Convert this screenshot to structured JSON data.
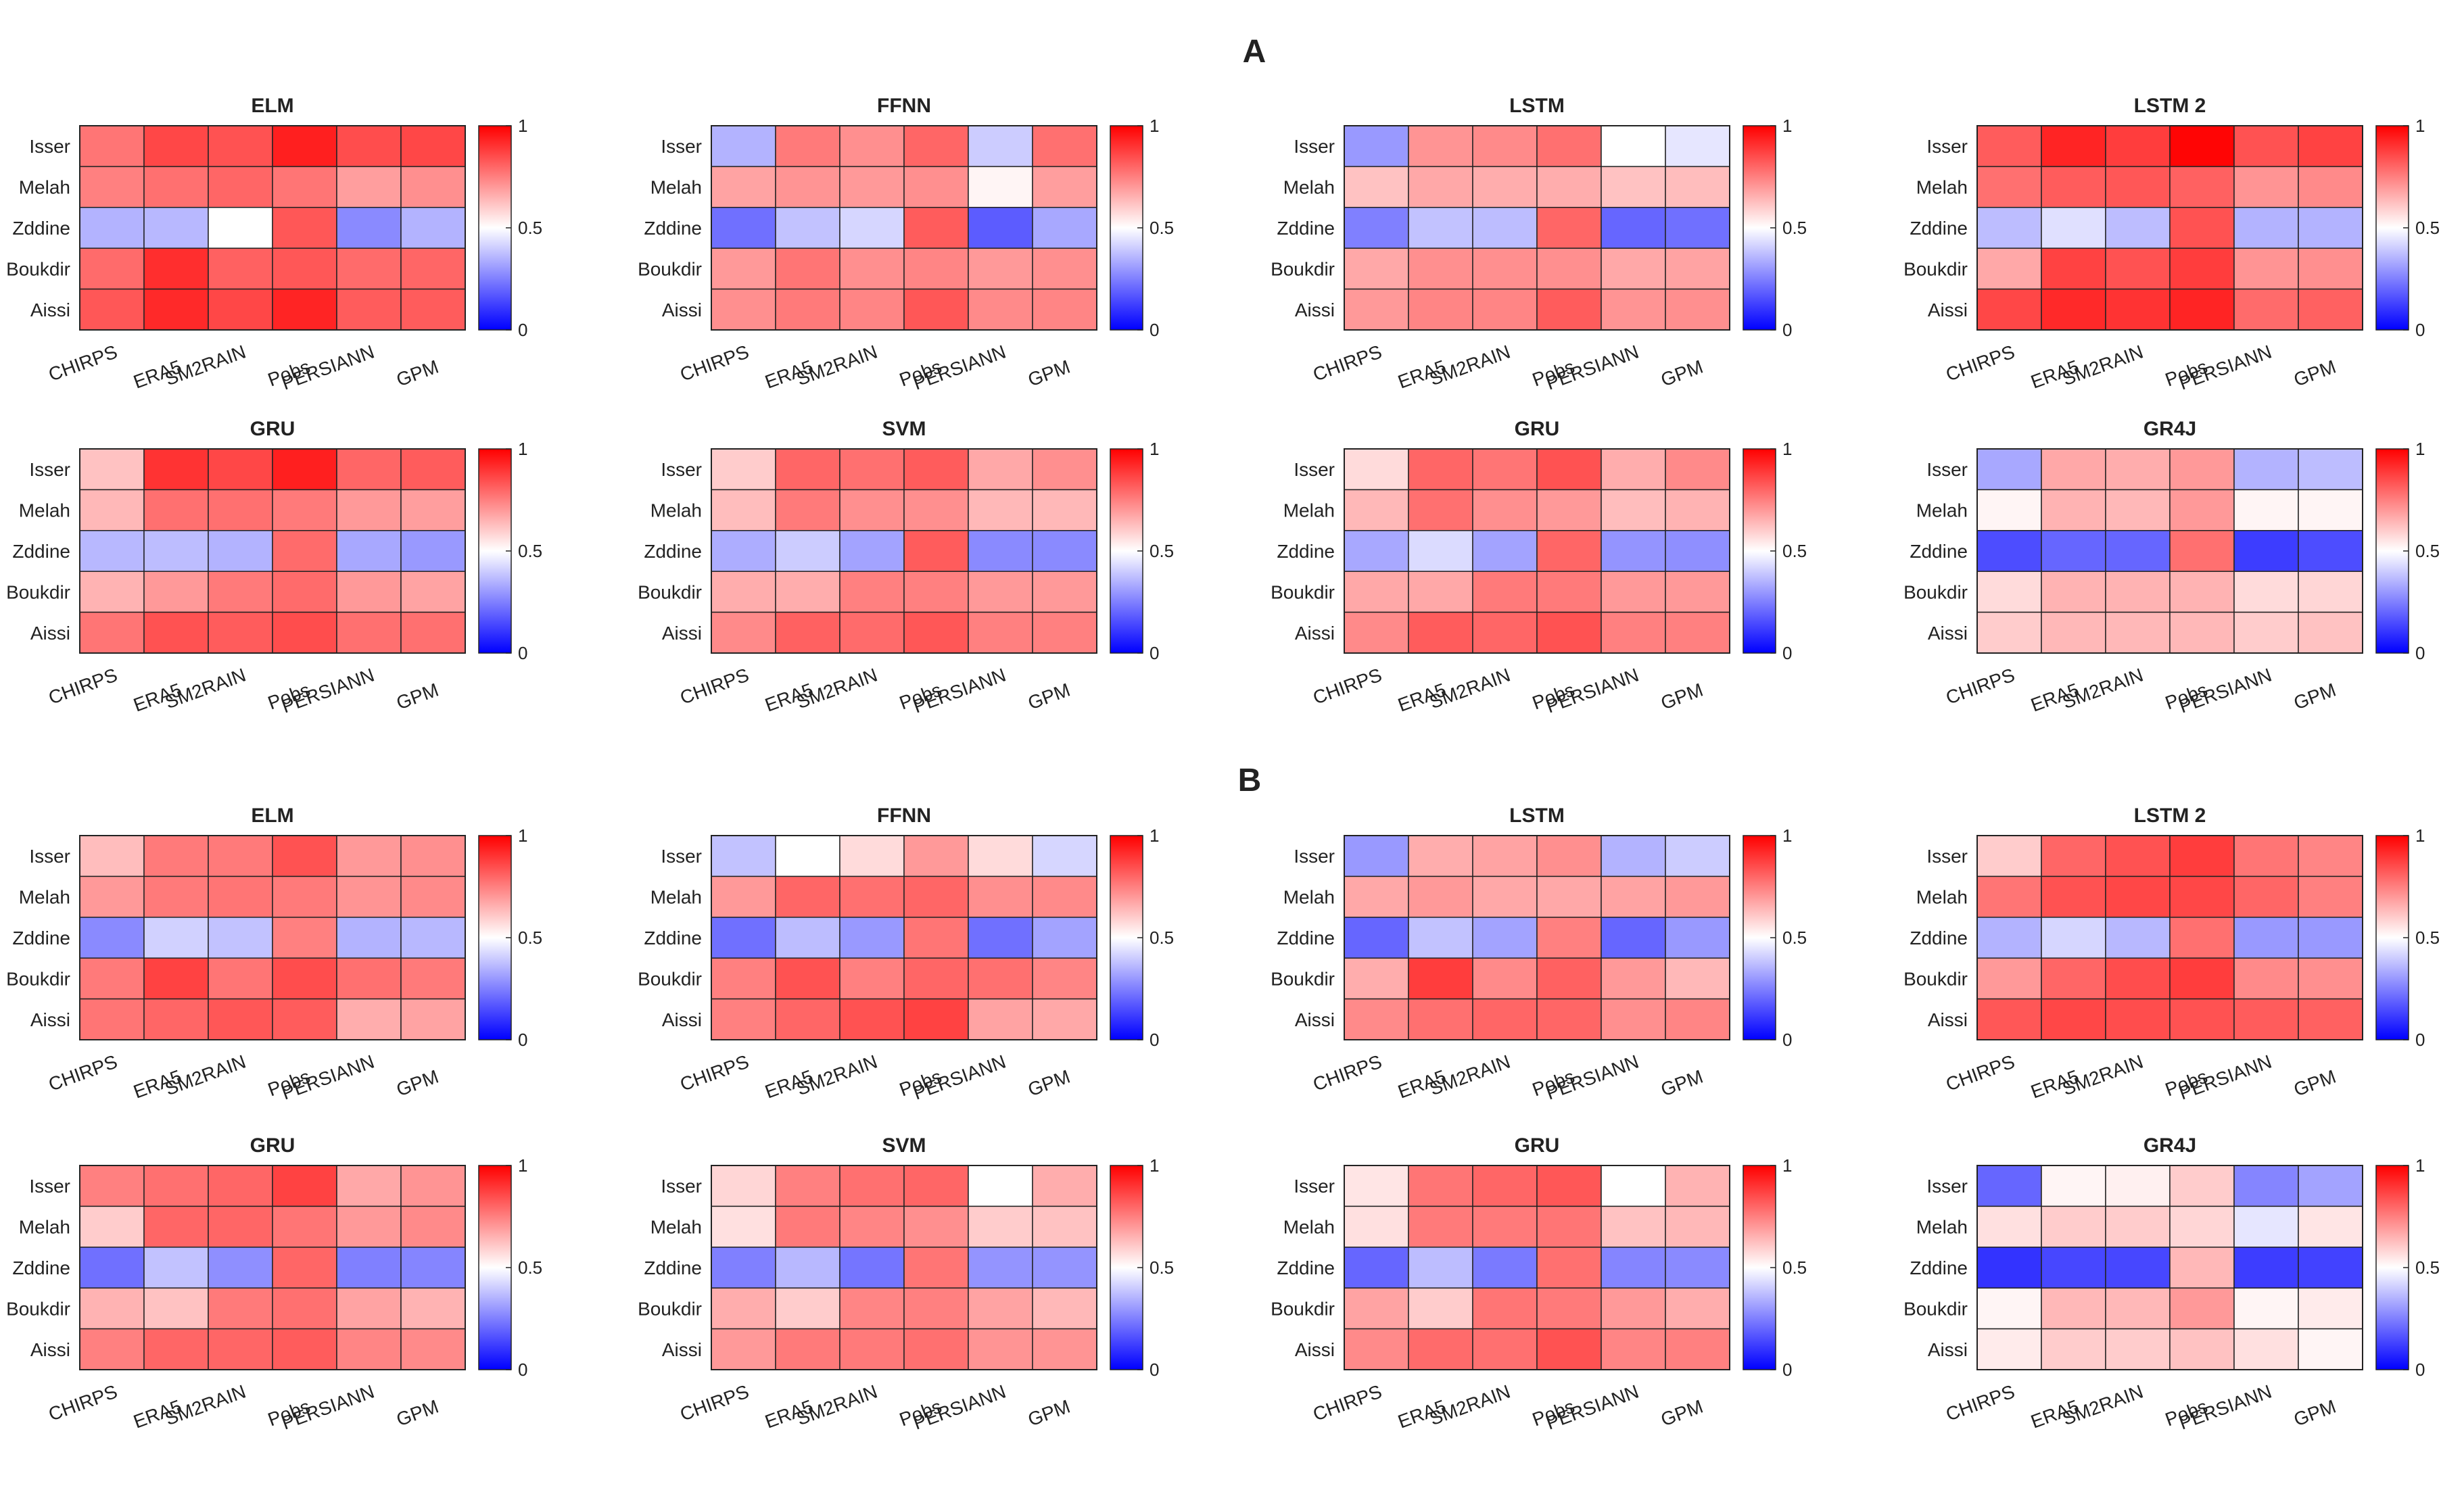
{
  "panels": [
    {
      "label": "A"
    },
    {
      "label": "B"
    }
  ],
  "colorbar": {
    "ticks": [
      "1",
      "0.5",
      "0"
    ],
    "colors": {
      "low": "#0000ff",
      "mid": "#ffffff",
      "high": "#ff0000"
    }
  },
  "chart_data": [
    {
      "type": "heatmap",
      "panel": "A",
      "title": "ELM",
      "rows": [
        "Isser",
        "Melah",
        "Zddine",
        "Boukdir",
        "Aissi"
      ],
      "columns": [
        "CHIRPS",
        "ERA5",
        "SM2RAIN",
        "Pobs",
        "PERSIANN",
        "GPM"
      ],
      "values": [
        [
          0.77,
          0.86,
          0.84,
          0.94,
          0.85,
          0.86
        ],
        [
          0.75,
          0.78,
          0.8,
          0.77,
          0.69,
          0.72
        ],
        [
          0.35,
          0.36,
          0.5,
          0.83,
          0.27,
          0.35
        ],
        [
          0.79,
          0.91,
          0.81,
          0.83,
          0.79,
          0.8
        ],
        [
          0.83,
          0.92,
          0.86,
          0.93,
          0.82,
          0.82
        ]
      ],
      "zlim": [
        0,
        1
      ]
    },
    {
      "type": "heatmap",
      "panel": "A",
      "title": "FFNN",
      "rows": [
        "Isser",
        "Melah",
        "Zddine",
        "Boukdir",
        "Aissi"
      ],
      "columns": [
        "CHIRPS",
        "ERA5",
        "SM2RAIN",
        "Pobs",
        "PERSIANN",
        "GPM"
      ],
      "values": [
        [
          0.35,
          0.76,
          0.72,
          0.8,
          0.4,
          0.78
        ],
        [
          0.68,
          0.71,
          0.7,
          0.72,
          0.52,
          0.69
        ],
        [
          0.22,
          0.38,
          0.42,
          0.82,
          0.18,
          0.33
        ],
        [
          0.7,
          0.77,
          0.72,
          0.74,
          0.7,
          0.72
        ],
        [
          0.72,
          0.76,
          0.74,
          0.83,
          0.73,
          0.74
        ]
      ],
      "zlim": [
        0,
        1
      ]
    },
    {
      "type": "heatmap",
      "panel": "A",
      "title": "LSTM",
      "rows": [
        "Isser",
        "Melah",
        "Zddine",
        "Boukdir",
        "Aissi"
      ],
      "columns": [
        "CHIRPS",
        "ERA5",
        "SM2RAIN",
        "Pobs",
        "PERSIANN",
        "GPM"
      ],
      "values": [
        [
          0.3,
          0.71,
          0.73,
          0.78,
          0.5,
          0.45
        ],
        [
          0.62,
          0.67,
          0.66,
          0.66,
          0.62,
          0.63
        ],
        [
          0.25,
          0.38,
          0.37,
          0.8,
          0.2,
          0.22
        ],
        [
          0.67,
          0.72,
          0.72,
          0.72,
          0.67,
          0.68
        ],
        [
          0.7,
          0.74,
          0.74,
          0.82,
          0.71,
          0.72
        ]
      ],
      "zlim": [
        0,
        1
      ]
    },
    {
      "type": "heatmap",
      "panel": "A",
      "title": "LSTM 2",
      "rows": [
        "Isser",
        "Melah",
        "Zddine",
        "Boukdir",
        "Aissi"
      ],
      "columns": [
        "CHIRPS",
        "ERA5",
        "SM2RAIN",
        "Pobs",
        "PERSIANN",
        "GPM"
      ],
      "values": [
        [
          0.82,
          0.93,
          0.88,
          0.99,
          0.84,
          0.87
        ],
        [
          0.78,
          0.82,
          0.83,
          0.81,
          0.71,
          0.73
        ],
        [
          0.37,
          0.44,
          0.37,
          0.84,
          0.35,
          0.35
        ],
        [
          0.67,
          0.87,
          0.84,
          0.88,
          0.71,
          0.72
        ],
        [
          0.86,
          0.92,
          0.9,
          0.93,
          0.79,
          0.81
        ]
      ],
      "zlim": [
        0,
        1
      ]
    },
    {
      "type": "heatmap",
      "panel": "A",
      "title": "GRU",
      "rows": [
        "Isser",
        "Melah",
        "Zddine",
        "Boukdir",
        "Aissi"
      ],
      "columns": [
        "CHIRPS",
        "ERA5",
        "SM2RAIN",
        "Pobs",
        "PERSIANN",
        "GPM"
      ],
      "values": [
        [
          0.62,
          0.9,
          0.86,
          0.94,
          0.8,
          0.82
        ],
        [
          0.64,
          0.78,
          0.78,
          0.76,
          0.7,
          0.69
        ],
        [
          0.36,
          0.37,
          0.35,
          0.79,
          0.33,
          0.3
        ],
        [
          0.65,
          0.7,
          0.76,
          0.79,
          0.7,
          0.68
        ],
        [
          0.77,
          0.84,
          0.82,
          0.85,
          0.78,
          0.78
        ]
      ],
      "zlim": [
        0,
        1
      ]
    },
    {
      "type": "heatmap",
      "panel": "A",
      "title": "SVM",
      "rows": [
        "Isser",
        "Melah",
        "Zddine",
        "Boukdir",
        "Aissi"
      ],
      "columns": [
        "CHIRPS",
        "ERA5",
        "SM2RAIN",
        "Pobs",
        "PERSIANN",
        "GPM"
      ],
      "values": [
        [
          0.6,
          0.8,
          0.78,
          0.82,
          0.67,
          0.72
        ],
        [
          0.63,
          0.76,
          0.72,
          0.72,
          0.64,
          0.64
        ],
        [
          0.34,
          0.4,
          0.32,
          0.82,
          0.27,
          0.27
        ],
        [
          0.66,
          0.66,
          0.75,
          0.75,
          0.7,
          0.7
        ],
        [
          0.73,
          0.81,
          0.79,
          0.83,
          0.75,
          0.75
        ]
      ],
      "zlim": [
        0,
        1
      ]
    },
    {
      "type": "heatmap",
      "panel": "A",
      "title": "GRU",
      "rows": [
        "Isser",
        "Melah",
        "Zddine",
        "Boukdir",
        "Aissi"
      ],
      "columns": [
        "CHIRPS",
        "ERA5",
        "SM2RAIN",
        "Pobs",
        "PERSIANN",
        "GPM"
      ],
      "values": [
        [
          0.57,
          0.8,
          0.77,
          0.84,
          0.66,
          0.73
        ],
        [
          0.64,
          0.78,
          0.72,
          0.7,
          0.63,
          0.65
        ],
        [
          0.33,
          0.43,
          0.32,
          0.8,
          0.29,
          0.28
        ],
        [
          0.67,
          0.67,
          0.76,
          0.76,
          0.7,
          0.7
        ],
        [
          0.73,
          0.82,
          0.8,
          0.84,
          0.75,
          0.75
        ]
      ],
      "zlim": [
        0,
        1
      ]
    },
    {
      "type": "heatmap",
      "panel": "A",
      "title": "GR4J",
      "rows": [
        "Isser",
        "Melah",
        "Zddine",
        "Boukdir",
        "Aissi"
      ],
      "columns": [
        "CHIRPS",
        "ERA5",
        "SM2RAIN",
        "Pobs",
        "PERSIANN",
        "GPM"
      ],
      "values": [
        [
          0.33,
          0.67,
          0.66,
          0.7,
          0.35,
          0.37
        ],
        [
          0.52,
          0.65,
          0.64,
          0.7,
          0.52,
          0.52
        ],
        [
          0.15,
          0.2,
          0.2,
          0.78,
          0.12,
          0.15
        ],
        [
          0.57,
          0.65,
          0.65,
          0.65,
          0.57,
          0.58
        ],
        [
          0.6,
          0.64,
          0.64,
          0.64,
          0.6,
          0.62
        ]
      ],
      "zlim": [
        0,
        1
      ]
    },
    {
      "type": "heatmap",
      "panel": "B",
      "title": "ELM",
      "rows": [
        "Isser",
        "Melah",
        "Zddine",
        "Boukdir",
        "Aissi"
      ],
      "columns": [
        "CHIRPS",
        "ERA5",
        "SM2RAIN",
        "Pobs",
        "PERSIANN",
        "GPM"
      ],
      "values": [
        [
          0.63,
          0.76,
          0.76,
          0.84,
          0.7,
          0.72
        ],
        [
          0.7,
          0.76,
          0.77,
          0.76,
          0.71,
          0.73
        ],
        [
          0.27,
          0.41,
          0.38,
          0.75,
          0.35,
          0.36
        ],
        [
          0.76,
          0.87,
          0.77,
          0.85,
          0.78,
          0.76
        ],
        [
          0.77,
          0.8,
          0.83,
          0.82,
          0.66,
          0.68
        ]
      ],
      "zlim": [
        0,
        1
      ]
    },
    {
      "type": "heatmap",
      "panel": "B",
      "title": "FFNN",
      "rows": [
        "Isser",
        "Melah",
        "Zddine",
        "Boukdir",
        "Aissi"
      ],
      "columns": [
        "CHIRPS",
        "ERA5",
        "SM2RAIN",
        "Pobs",
        "PERSIANN",
        "GPM"
      ],
      "values": [
        [
          0.38,
          0.5,
          0.57,
          0.7,
          0.57,
          0.42
        ],
        [
          0.7,
          0.8,
          0.78,
          0.8,
          0.72,
          0.73
        ],
        [
          0.22,
          0.37,
          0.3,
          0.77,
          0.22,
          0.32
        ],
        [
          0.75,
          0.84,
          0.75,
          0.8,
          0.78,
          0.74
        ],
        [
          0.75,
          0.8,
          0.84,
          0.87,
          0.68,
          0.67
        ]
      ],
      "zlim": [
        0,
        1
      ]
    },
    {
      "type": "heatmap",
      "panel": "B",
      "title": "LSTM",
      "rows": [
        "Isser",
        "Melah",
        "Zddine",
        "Boukdir",
        "Aissi"
      ],
      "columns": [
        "CHIRPS",
        "ERA5",
        "SM2RAIN",
        "Pobs",
        "PERSIANN",
        "GPM"
      ],
      "values": [
        [
          0.3,
          0.66,
          0.68,
          0.72,
          0.35,
          0.4
        ],
        [
          0.67,
          0.7,
          0.67,
          0.67,
          0.68,
          0.7
        ],
        [
          0.2,
          0.38,
          0.32,
          0.75,
          0.2,
          0.3
        ],
        [
          0.66,
          0.88,
          0.73,
          0.81,
          0.7,
          0.64
        ],
        [
          0.73,
          0.78,
          0.8,
          0.8,
          0.72,
          0.74
        ]
      ],
      "zlim": [
        0,
        1
      ]
    },
    {
      "type": "heatmap",
      "panel": "B",
      "title": "LSTM 2",
      "rows": [
        "Isser",
        "Melah",
        "Zddine",
        "Boukdir",
        "Aissi"
      ],
      "columns": [
        "CHIRPS",
        "ERA5",
        "SM2RAIN",
        "Pobs",
        "PERSIANN",
        "GPM"
      ],
      "values": [
        [
          0.6,
          0.8,
          0.84,
          0.88,
          0.77,
          0.74
        ],
        [
          0.77,
          0.84,
          0.86,
          0.86,
          0.8,
          0.75
        ],
        [
          0.35,
          0.42,
          0.36,
          0.78,
          0.3,
          0.3
        ],
        [
          0.7,
          0.8,
          0.85,
          0.88,
          0.73,
          0.72
        ],
        [
          0.83,
          0.86,
          0.85,
          0.84,
          0.82,
          0.81
        ]
      ],
      "zlim": [
        0,
        1
      ]
    },
    {
      "type": "heatmap",
      "panel": "B",
      "title": "GRU",
      "rows": [
        "Isser",
        "Melah",
        "Zddine",
        "Boukdir",
        "Aissi"
      ],
      "columns": [
        "CHIRPS",
        "ERA5",
        "SM2RAIN",
        "Pobs",
        "PERSIANN",
        "GPM"
      ],
      "values": [
        [
          0.75,
          0.78,
          0.8,
          0.87,
          0.67,
          0.71
        ],
        [
          0.6,
          0.8,
          0.8,
          0.77,
          0.7,
          0.73
        ],
        [
          0.22,
          0.38,
          0.28,
          0.8,
          0.25,
          0.26
        ],
        [
          0.65,
          0.62,
          0.76,
          0.78,
          0.68,
          0.65
        ],
        [
          0.75,
          0.8,
          0.8,
          0.82,
          0.74,
          0.73
        ]
      ],
      "zlim": [
        0,
        1
      ]
    },
    {
      "type": "heatmap",
      "panel": "B",
      "title": "SVM",
      "rows": [
        "Isser",
        "Melah",
        "Zddine",
        "Boukdir",
        "Aissi"
      ],
      "columns": [
        "CHIRPS",
        "ERA5",
        "SM2RAIN",
        "Pobs",
        "PERSIANN",
        "GPM"
      ],
      "values": [
        [
          0.58,
          0.75,
          0.78,
          0.8,
          0.5,
          0.66
        ],
        [
          0.56,
          0.76,
          0.74,
          0.72,
          0.6,
          0.62
        ],
        [
          0.25,
          0.36,
          0.23,
          0.77,
          0.29,
          0.29
        ],
        [
          0.66,
          0.6,
          0.74,
          0.75,
          0.68,
          0.64
        ],
        [
          0.7,
          0.76,
          0.76,
          0.78,
          0.71,
          0.71
        ]
      ],
      "zlim": [
        0,
        1
      ]
    },
    {
      "type": "heatmap",
      "panel": "B",
      "title": "GRU",
      "rows": [
        "Isser",
        "Melah",
        "Zddine",
        "Boukdir",
        "Aissi"
      ],
      "columns": [
        "CHIRPS",
        "ERA5",
        "SM2RAIN",
        "Pobs",
        "PERSIANN",
        "GPM"
      ],
      "values": [
        [
          0.55,
          0.77,
          0.8,
          0.83,
          0.5,
          0.65
        ],
        [
          0.56,
          0.76,
          0.76,
          0.77,
          0.62,
          0.64
        ],
        [
          0.2,
          0.37,
          0.24,
          0.78,
          0.26,
          0.27
        ],
        [
          0.68,
          0.6,
          0.77,
          0.76,
          0.7,
          0.66
        ],
        [
          0.73,
          0.79,
          0.78,
          0.84,
          0.74,
          0.75
        ]
      ],
      "zlim": [
        0,
        1
      ]
    },
    {
      "type": "heatmap",
      "panel": "B",
      "title": "GR4J",
      "rows": [
        "Isser",
        "Melah",
        "Zddine",
        "Boukdir",
        "Aissi"
      ],
      "columns": [
        "CHIRPS",
        "ERA5",
        "SM2RAIN",
        "Pobs",
        "PERSIANN",
        "GPM"
      ],
      "values": [
        [
          0.2,
          0.52,
          0.53,
          0.6,
          0.26,
          0.32
        ],
        [
          0.56,
          0.6,
          0.6,
          0.58,
          0.45,
          0.55
        ],
        [
          0.1,
          0.14,
          0.14,
          0.64,
          0.12,
          0.13
        ],
        [
          0.52,
          0.64,
          0.64,
          0.7,
          0.52,
          0.54
        ],
        [
          0.54,
          0.6,
          0.6,
          0.62,
          0.56,
          0.52
        ]
      ],
      "zlim": [
        0,
        1
      ]
    }
  ]
}
